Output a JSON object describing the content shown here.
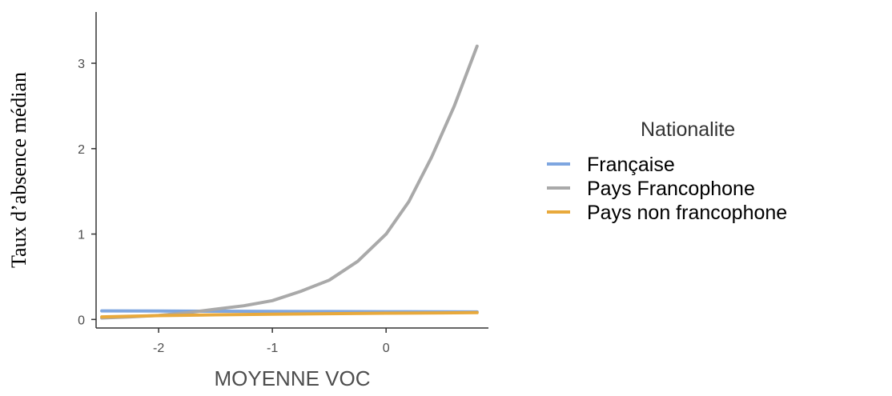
{
  "chart_data": {
    "type": "line",
    "xlabel": "MOYENNE VOC",
    "ylabel": "Taux d’absence médian",
    "xlim": [
      -2.55,
      0.9
    ],
    "ylim": [
      -0.1,
      3.6
    ],
    "x_ticks": [
      -2,
      -1,
      0
    ],
    "y_ticks": [
      0,
      1,
      2,
      3
    ],
    "grid": false,
    "legend": {
      "title": "Nationalite",
      "position": "right"
    },
    "series": [
      {
        "name": "Française",
        "color": "#7ea6e0",
        "x": [
          -2.5,
          -2.0,
          -1.5,
          -1.0,
          -0.5,
          0.0,
          0.5,
          0.8
        ],
        "y": [
          0.1,
          0.099,
          0.097,
          0.095,
          0.093,
          0.091,
          0.089,
          0.088
        ]
      },
      {
        "name": "Pays Francophone",
        "color": "#a9a9a9",
        "x": [
          -2.5,
          -2.25,
          -2.0,
          -1.75,
          -1.5,
          -1.25,
          -1.0,
          -0.75,
          -0.5,
          -0.25,
          0.0,
          0.2,
          0.4,
          0.6,
          0.8
        ],
        "y": [
          0.017,
          0.03,
          0.048,
          0.078,
          0.12,
          0.16,
          0.22,
          0.33,
          0.46,
          0.68,
          1.0,
          1.38,
          1.9,
          2.5,
          3.2
        ]
      },
      {
        "name": "Pays non francophone",
        "color": "#e8a93c",
        "x": [
          -2.5,
          -2.0,
          -1.5,
          -1.0,
          -0.5,
          0.0,
          0.5,
          0.8
        ],
        "y": [
          0.03,
          0.045,
          0.055,
          0.062,
          0.068,
          0.073,
          0.077,
          0.08
        ]
      }
    ]
  }
}
